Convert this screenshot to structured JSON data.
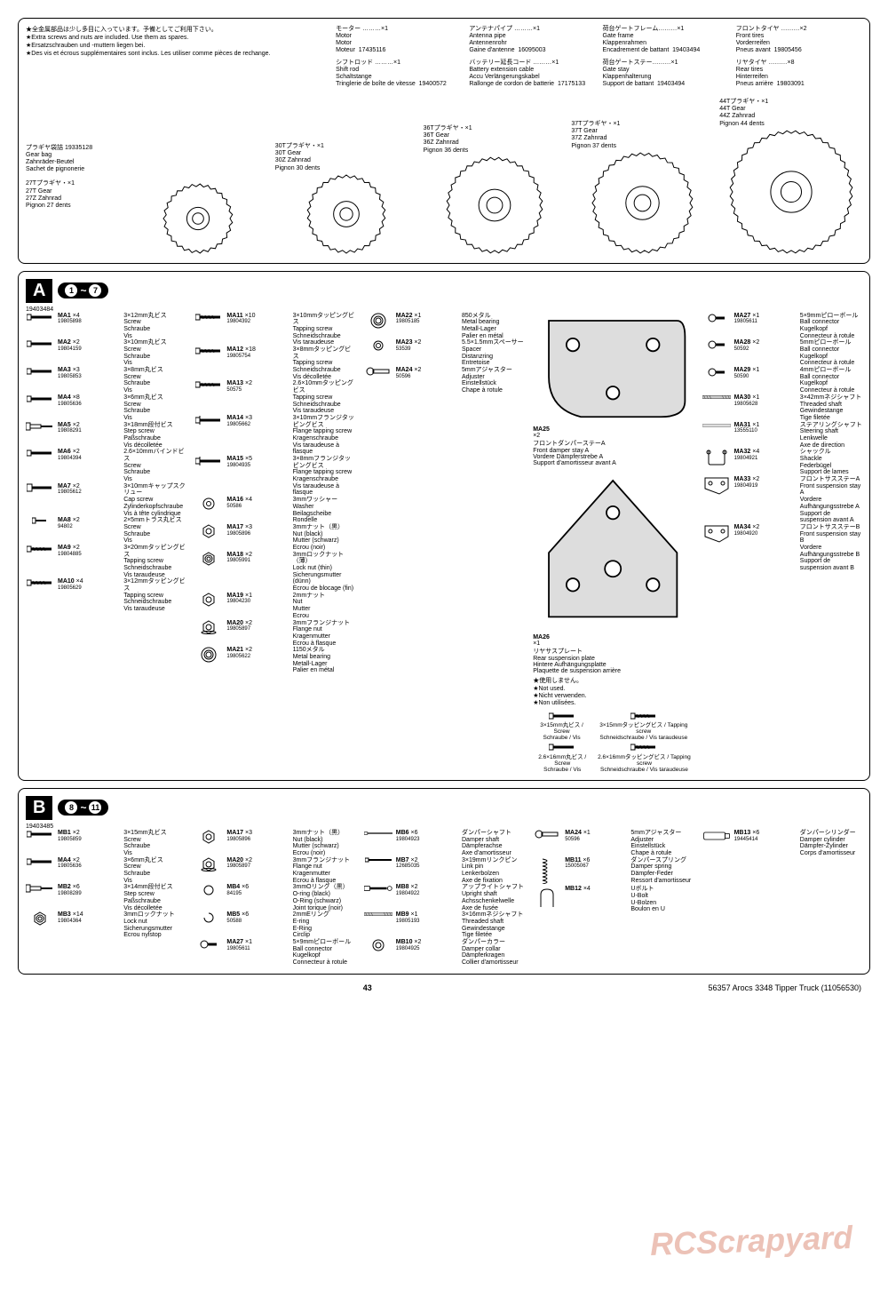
{
  "header_notes": {
    "jp": "全金属部品は少し多目に入っています。予備としてご利用下さい。",
    "en": "Extra screws and nuts are included. Use them as spares.",
    "de": "Ersatzschrauben und -muttern liegen bei.",
    "fr": "Des vis et écrous supplémentaires sont inclus. Les utiliser comme pièces de rechange."
  },
  "top": [
    {
      "jp": "モーター ………×1",
      "en": "Motor",
      "de": "Motor",
      "fr": "Moteur",
      "num": "17435116"
    },
    {
      "jp": "シフトロッド ………×1",
      "en": "Shift rod",
      "de": "Schaltstange",
      "fr": "Tringlerie de boîte de vitesse",
      "num": "19400572"
    },
    {
      "jp": "アンテナパイプ ………×1",
      "en": "Antenna pipe",
      "de": "Antennenrohr",
      "fr": "Gaine d'antenne",
      "num": "16095003"
    },
    {
      "jp": "バッテリー延長コード ………×1",
      "en": "Battery extension cable",
      "de": "Accu Verlängerungskabel",
      "fr": "Rallonge de cordon de batterie",
      "num": "17175133"
    },
    {
      "jp": "荷台ゲートフレーム………×1",
      "en": "Gate frame",
      "de": "Klappenrahmen",
      "fr": "Encadrement de battant",
      "num": "19403494"
    },
    {
      "jp": "荷台ゲートステー………×1",
      "en": "Gate stay",
      "de": "Klappenhalterung",
      "fr": "Support de battant",
      "num": "19403494"
    },
    {
      "jp": "フロントタイヤ ………×2",
      "en": "Front tires",
      "de": "Vorderreifen",
      "fr": "Pneus avant",
      "num": "19805456"
    },
    {
      "jp": "リヤタイヤ ………×8",
      "en": "Rear tires",
      "de": "Hinterreifen",
      "fr": "Pneus arrière",
      "num": "19803091"
    }
  ],
  "gearbag": {
    "jp": "プラギヤ袋詰",
    "num": "19335128",
    "en": "Gear bag",
    "de": "Zahnräder-Beutel",
    "fr": "Sachet de pignonerie",
    "gears": [
      {
        "jp": "27Tプラギヤ・×1",
        "en": "27T Gear",
        "de": "27Z Zahnrad",
        "fr": "Pignon 27 dents"
      },
      {
        "jp": "30Tプラギヤ・×1",
        "en": "30T Gear",
        "de": "30Z Zahnrad",
        "fr": "Pignon 30 dents"
      },
      {
        "jp": "36Tプラギヤ・×1",
        "en": "36T Gear",
        "de": "36Z Zahnrad",
        "fr": "Pignon 36 dents"
      },
      {
        "jp": "37Tプラギヤ・×1",
        "en": "37T Gear",
        "de": "37Z Zahnrad",
        "fr": "Pignon 37 dents"
      },
      {
        "jp": "44Tプラギヤ・×1",
        "en": "44T Gear",
        "de": "44Z Zahnrad",
        "fr": "Pignon 44 dents"
      }
    ]
  },
  "bagA": {
    "letter": "A",
    "range_from": "1",
    "range_to": "7",
    "num": "19403484",
    "parts": [
      {
        "code": "MA1",
        "qty": "×4",
        "num": "19805898",
        "jp": "3×12mm丸ビス",
        "en": "Screw",
        "de": "Schraube",
        "fr": "Vis",
        "icon": "screw"
      },
      {
        "code": "MA2",
        "qty": "×2",
        "num": "19804159",
        "jp": "3×10mm丸ビス",
        "en": "Screw",
        "de": "Schraube",
        "fr": "Vis",
        "icon": "screw"
      },
      {
        "code": "MA3",
        "qty": "×3",
        "num": "19805853",
        "jp": "3×8mm丸ビス",
        "en": "Screw",
        "de": "Schraube",
        "fr": "Vis",
        "icon": "screw"
      },
      {
        "code": "MA4",
        "qty": "×8",
        "num": "19805636",
        "jp": "3×6mm丸ビス",
        "en": "Screw",
        "de": "Schraube",
        "fr": "Vis",
        "icon": "screw"
      },
      {
        "code": "MA5",
        "qty": "×2",
        "num": "19808291",
        "jp": "3×18mm段付ビス",
        "en": "Step screw",
        "de": "Paßschraube",
        "fr": "Vis décolletée",
        "icon": "stepscrew"
      },
      {
        "code": "MA6",
        "qty": "×2",
        "num": "19804394",
        "jp": "2.6×10mmバインドビス",
        "en": "Screw",
        "de": "Schraube",
        "fr": "Vis",
        "icon": "screw"
      },
      {
        "code": "MA7",
        "qty": "×2",
        "num": "19805612",
        "jp": "3×10mmキャップスクリュー",
        "en": "Cap screw",
        "de": "Zylinderkopfschraube",
        "fr": "Vis à tête cylindrique",
        "icon": "capscrew"
      },
      {
        "code": "MA8",
        "qty": "×2",
        "num": "94802",
        "jp": "2×5mmトラス丸ビス",
        "en": "Screw",
        "de": "Schraube",
        "fr": "Vis",
        "icon": "screw-s"
      },
      {
        "code": "MA9",
        "qty": "×2",
        "num": "19804885",
        "jp": "3×20mmタッピングビス",
        "en": "Tapping screw",
        "de": "Schneidschraube",
        "fr": "Vis taraudeuse",
        "icon": "tapscrew-l"
      },
      {
        "code": "MA10",
        "qty": "×4",
        "num": "19805629",
        "jp": "3×12mmタッピングビス",
        "en": "Tapping screw",
        "de": "Schneidschraube",
        "fr": "Vis taraudeuse",
        "icon": "tapscrew"
      },
      {
        "code": "MA11",
        "qty": "×10",
        "num": "19804392",
        "jp": "3×10mmタッピングビス",
        "en": "Tapping screw",
        "de": "Schneidschraube",
        "fr": "Vis taraudeuse",
        "icon": "tapscrew"
      },
      {
        "code": "MA12",
        "qty": "×18",
        "num": "19805754",
        "jp": "3×8mmタッピングビス",
        "en": "Tapping screw",
        "de": "Schneidschraube",
        "fr": "Vis décolletée",
        "icon": "tapscrew"
      },
      {
        "code": "MA13",
        "qty": "×2",
        "num": "50575",
        "jp": "2.6×10mmタッピングビス",
        "en": "Tapping screw",
        "de": "Schneidschraube",
        "fr": "Vis taraudeuse",
        "icon": "tapscrew"
      },
      {
        "code": "MA14",
        "qty": "×3",
        "num": "19805662",
        "jp": "3×10mmフランジタッピングビス",
        "en": "Flange tapping screw",
        "de": "Kragenschraube",
        "fr": "Vis taraudeuse à flasque",
        "icon": "flangetap"
      },
      {
        "code": "MA15",
        "qty": "×5",
        "num": "19804935",
        "jp": "3×8mmフランジタッピングビス",
        "en": "Flange tapping screw",
        "de": "Kragenschraube",
        "fr": "Vis taraudeuse à flasque",
        "icon": "flangetap"
      },
      {
        "code": "MA16",
        "qty": "×4",
        "num": "50586",
        "jp": "3mmワッシャー",
        "en": "Washer",
        "de": "Beilagscheibe",
        "fr": "Rondelle",
        "icon": "washer"
      },
      {
        "code": "MA17",
        "qty": "×3",
        "num": "19805896",
        "jp": "3mmナット（黒）",
        "en": "Nut (black)",
        "de": "Mutter (schwarz)",
        "fr": "Ecrou (noir)",
        "icon": "nut"
      },
      {
        "code": "MA18",
        "qty": "×2",
        "num": "19805991",
        "jp": "3mmロックナット（薄）",
        "en": "Lock nut (thin)",
        "de": "Sicherungsmutter (dünn)",
        "fr": "Ecrou de blocage (fin)",
        "icon": "locknut"
      },
      {
        "code": "MA19",
        "qty": "×1",
        "num": "19804230",
        "jp": "2mmナット",
        "en": "Nut",
        "de": "Mutter",
        "fr": "Ecrou",
        "icon": "nut-s"
      },
      {
        "code": "MA20",
        "qty": "×2",
        "num": "19805897",
        "jp": "3mmフランジナット",
        "en": "Flange nut",
        "de": "Kragenmutter",
        "fr": "Ecrou à flasque",
        "icon": "flangenut"
      },
      {
        "code": "MA21",
        "qty": "×2",
        "num": "19805622",
        "jp": "1150メタル",
        "en": "Metal bearing",
        "de": "Metall-Lager",
        "fr": "Palier en métal",
        "icon": "bearing"
      },
      {
        "code": "MA22",
        "qty": "×1",
        "num": "19805185",
        "jp": "850メタル",
        "en": "Metal bearing",
        "de": "Metall-Lager",
        "fr": "Palier en métal",
        "icon": "bearing-s"
      },
      {
        "code": "MA23",
        "qty": "×2",
        "num": "53539",
        "jp": "5.5×1.5mmスペーサー",
        "en": "Spacer",
        "de": "Distanzring",
        "fr": "Entretoise",
        "icon": "spacer"
      },
      {
        "code": "MA24",
        "qty": "×2",
        "num": "50596",
        "jp": "5mmアジャスター",
        "en": "Adjuster",
        "de": "Einstellstück",
        "fr": "Chape à rotule",
        "icon": "adjuster"
      },
      {
        "code": "MA27",
        "qty": "×1",
        "num": "19805611",
        "jp": "5×9mmピローボール",
        "en": "Ball connector",
        "de": "Kugelkopf",
        "fr": "Connecteur à rotule",
        "icon": "ball"
      },
      {
        "code": "MA28",
        "qty": "×2",
        "num": "50592",
        "jp": "5mmピローボール",
        "en": "Ball connector",
        "de": "Kugelkopf",
        "fr": "Connecteur à rotule",
        "icon": "ball"
      },
      {
        "code": "MA29",
        "qty": "×1",
        "num": "50590",
        "jp": "4mmピローボール",
        "en": "Ball connector",
        "de": "Kugelkopf",
        "fr": "Connecteur à rotule",
        "icon": "ball-s"
      },
      {
        "code": "MA30",
        "qty": "×1",
        "num": "19805628",
        "jp": "3×42mmネジシャフト",
        "en": "Threaded shaft",
        "de": "Gewindestange",
        "fr": "Tige filetée",
        "icon": "shaft"
      },
      {
        "code": "MA31",
        "qty": "×1",
        "num": "13555110",
        "jp": "ステアリングシャフト",
        "en": "Steering shaft",
        "de": "Lenkwelle",
        "fr": "Axe de direction",
        "icon": "steershaft"
      },
      {
        "code": "MA32",
        "qty": "×4",
        "num": "19804921",
        "jp": "シャックル",
        "en": "Shackle",
        "de": "Federbügel",
        "fr": "Support de lames",
        "icon": "shackle"
      },
      {
        "code": "MA33",
        "qty": "×2",
        "num": "19804919",
        "jp": "フロントサスステーA",
        "en": "Front suspension stay A",
        "de": "Vordere Aufhängungsstrebe A",
        "fr": "Support de suspension avant A",
        "icon": "stayA"
      },
      {
        "code": "MA34",
        "qty": "×2",
        "num": "19804920",
        "jp": "フロントサスステーB",
        "en": "Front suspension stay B",
        "de": "Vordere Aufhängungsstrebe B",
        "fr": "Support de suspension avant B",
        "icon": "stayB"
      }
    ],
    "plates": {
      "MA25": {
        "code": "MA25",
        "qty": "×2",
        "jp": "フロントダンパーステーA",
        "en": "Front damper stay A",
        "de": "Vordere Dämpferstrebe A",
        "fr": "Support d'amortisseur avant A"
      },
      "MA26": {
        "code": "MA26",
        "qty": "×1",
        "jp": "リヤサスプレート",
        "en": "Rear suspension plate",
        "de": "Hintere Aufhängungsplatte",
        "fr": "Plaquette de suspension arrière"
      }
    },
    "notused": {
      "jp": "使用しません。",
      "en": "Not used.",
      "de": "Nicht verwenden.",
      "fr": "Non utilisées."
    },
    "bottom_screws": [
      {
        "jp": "3×15mm丸ビス / Screw",
        "de": "Schraube / Vis"
      },
      {
        "jp": "2.6×16mm丸ビス / Screw",
        "de": "Schraube / Vis"
      },
      {
        "jp": "3×15mmタッピングビス / Tapping screw",
        "de": "Schneidschraube / Vis taraudeuse"
      },
      {
        "jp": "2.6×16mmタッピングビス / Tapping screw",
        "de": "Schneidschraube / Vis taraudeuse"
      }
    ]
  },
  "bagB": {
    "letter": "B",
    "range_from": "8",
    "range_to": "11",
    "num": "19403485",
    "parts": [
      {
        "code": "MB1",
        "qty": "×2",
        "num": "19805859",
        "jp": "3×15mm丸ビス",
        "en": "Screw",
        "de": "Schraube",
        "fr": "Vis",
        "icon": "screw"
      },
      {
        "code": "MA4",
        "qty": "×2",
        "num": "19805636",
        "jp": "3×6mm丸ビス",
        "en": "Screw",
        "de": "Schraube",
        "fr": "Vis",
        "icon": "screw"
      },
      {
        "code": "MB2",
        "qty": "×6",
        "num": "19808289",
        "jp": "3×14mm段付ビス",
        "en": "Step screw",
        "de": "Paßschraube",
        "fr": "Vis décolletée",
        "icon": "stepscrew"
      },
      {
        "code": "MB3",
        "qty": "×14",
        "num": "19804364",
        "jp": "3mmロックナット",
        "en": "Lock nut",
        "de": "Sicherungsmutter",
        "fr": "Ecrou nylstop",
        "icon": "locknut"
      },
      {
        "code": "MA17",
        "qty": "×3",
        "num": "19805896",
        "jp": "3mmナット（黒）",
        "en": "Nut (black)",
        "de": "Mutter (schwarz)",
        "fr": "Ecrou (noir)",
        "icon": "nut"
      },
      {
        "code": "MA20",
        "qty": "×2",
        "num": "19805897",
        "jp": "3mmフランジナット",
        "en": "Flange nut",
        "de": "Kragenmutter",
        "fr": "Ecrou à flasque",
        "icon": "flangenut"
      },
      {
        "code": "MB4",
        "qty": "×6",
        "num": "84195",
        "jp": "3mmOリング（黒）",
        "en": "O-ring (black)",
        "de": "O-Ring (schwarz)",
        "fr": "Joint torique (noir)",
        "icon": "oring"
      },
      {
        "code": "MB5",
        "qty": "×6",
        "num": "50588",
        "jp": "2mmEリング",
        "en": "E-ring",
        "de": "E-Ring",
        "fr": "Circlip",
        "icon": "ering"
      },
      {
        "code": "MA27",
        "qty": "×1",
        "num": "19805611",
        "jp": "5×9mmピローボール",
        "en": "Ball connector",
        "de": "Kugelkopf",
        "fr": "Connecteur à rotule",
        "icon": "ball"
      },
      {
        "code": "MB6",
        "qty": "×6",
        "num": "19804923",
        "jp": "ダンパーシャフト",
        "en": "Damper shaft",
        "de": "Dämpferachse",
        "fr": "Axe d'amortisseur",
        "icon": "dshaft"
      },
      {
        "code": "MB7",
        "qty": "×2",
        "num": "12685035",
        "jp": "3×19mmリンクピン",
        "en": "Link pin",
        "de": "Lenkerbolzen",
        "fr": "Axe de fixation",
        "icon": "pin"
      },
      {
        "code": "MB8",
        "qty": "×2",
        "num": "19804922",
        "jp": "アップライトシャフト",
        "en": "Upright shaft",
        "de": "Achsschenkelwelle",
        "fr": "Axe de fusée",
        "icon": "ushaft"
      },
      {
        "code": "MB9",
        "qty": "×1",
        "num": "19805193",
        "jp": "3×16mmネジシャフト",
        "en": "Threaded shaft",
        "de": "Gewindestange",
        "fr": "Tige filetée",
        "icon": "shaft-s"
      },
      {
        "code": "MB10",
        "qty": "×2",
        "num": "19804925",
        "jp": "ダンパーカラー",
        "en": "Damper collar",
        "de": "Dämpferkragen",
        "fr": "Collier d'amortisseur",
        "icon": "collar"
      },
      {
        "code": "MA24",
        "qty": "×1",
        "num": "50596",
        "jp": "5mmアジャスター",
        "en": "Adjuster",
        "de": "Einstellstück",
        "fr": "Chape à rotule",
        "icon": "adjuster"
      },
      {
        "code": "MB11",
        "qty": "×6",
        "num": "15005067",
        "jp": "ダンパースプリング",
        "en": "Damper spring",
        "de": "Dämpfer-Feder",
        "fr": "Ressort d'amortisseur",
        "icon": "spring"
      },
      {
        "code": "MB12",
        "qty": "×4",
        "num": "",
        "jp": "Uボルト",
        "en": "U-Bolt",
        "de": "U-Bolzen",
        "fr": "Boulon en U",
        "icon": "ubolt"
      },
      {
        "code": "MB13",
        "qty": "×6",
        "num": "19445414",
        "jp": "ダンパーシリンダー",
        "en": "Damper cylinder",
        "de": "Dämpfer-Zylinder",
        "fr": "Corps d'amortisseur",
        "icon": "cylinder"
      }
    ]
  },
  "footer": {
    "page": "43",
    "title": "56357 Arocs 3348 Tipper Truck (11056530)"
  },
  "watermark": "RCScrapyard"
}
